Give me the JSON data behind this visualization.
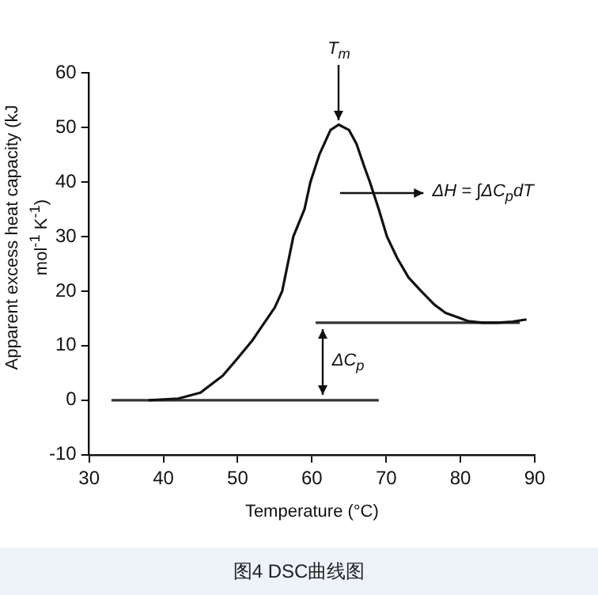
{
  "chart_data": {
    "type": "line",
    "xlabel": "Temperature (°C)",
    "ylabel": "Apparent excess heat capacity (kJ mol$^{-1}$ K$^{-1}$)",
    "xlim": [
      30,
      90
    ],
    "ylim": [
      -10,
      60
    ],
    "xticks": [
      30,
      40,
      50,
      60,
      70,
      80,
      90
    ],
    "yticks": [
      -10,
      0,
      10,
      20,
      30,
      40,
      50,
      60
    ],
    "grid": false,
    "legend": false,
    "marker": "none",
    "line_style": "solid",
    "series": [
      {
        "color": "#111111",
        "x": [
          38,
          42,
          45,
          48,
          50,
          52,
          54,
          55,
          56,
          57.5,
          59,
          59.8,
          61,
          62.5,
          63.6,
          65,
          66,
          67,
          67.8,
          69,
          70.1,
          71.5,
          73,
          74.7,
          76.5,
          78,
          80,
          81,
          83,
          85,
          87,
          88.9
        ],
        "values": [
          0,
          0.3,
          1.4,
          4.5,
          7.7,
          11,
          15,
          17,
          20,
          30,
          35,
          40,
          45,
          49.5,
          50.5,
          49.5,
          47,
          43,
          40,
          35,
          30,
          26,
          22.5,
          20,
          17.5,
          16,
          15,
          14.5,
          14.2,
          14.2,
          14.4,
          14.8
        ]
      },
      {
        "color": "#333333",
        "x": [
          33,
          69
        ],
        "values": [
          0,
          0
        ]
      },
      {
        "color": "#333333",
        "x": [
          60.5,
          88
        ],
        "values": [
          14.2,
          14.2
        ]
      }
    ],
    "annotations": [
      {
        "text": "T$_{m}$",
        "x": 63.6,
        "y": 50.5
      },
      "ΔH = ∫ΔC$_{p}$dT",
      "ΔC$_{p}$",
      "图4 DSC曲线图"
    ]
  }
}
